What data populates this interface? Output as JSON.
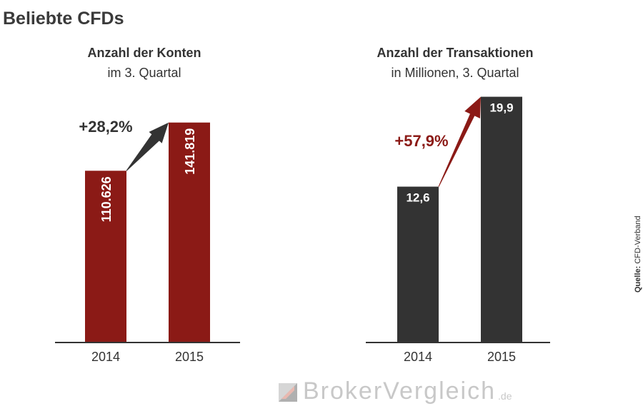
{
  "page_title": "Beliebte CFDs",
  "colors": {
    "dark_red": "#8b1a16",
    "dark_gray": "#333333",
    "arrow_gray": "#333333",
    "axis": "#333333",
    "logo_gray": "#c8c8c8"
  },
  "source": {
    "label": "Quelle:",
    "value": "CFD-Verband"
  },
  "logo": {
    "text": "BrokerVergleich",
    "suffix": ".de",
    "mark_icon": "brokervergleich-logo-icon"
  },
  "chart_data": [
    {
      "type": "bar",
      "title": "Anzahl der Konten",
      "subtitle": "im 3. Quartal",
      "categories": [
        "2014",
        "2015"
      ],
      "values": [
        110626,
        141819
      ],
      "value_labels": [
        "110.626",
        "141.819"
      ],
      "label_orientation": "vertical",
      "bar_color": "#8b1a16",
      "change_label": "+28,2%",
      "change_color": "#333333",
      "arrow_color": "#333333",
      "ylim": [
        0,
        180000
      ]
    },
    {
      "type": "bar",
      "title": "Anzahl der Transaktionen",
      "subtitle": "in Millionen, 3. Quartal",
      "categories": [
        "2014",
        "2015"
      ],
      "values": [
        12.6,
        19.9
      ],
      "value_labels": [
        "12,6",
        "19,9"
      ],
      "label_orientation": "horizontal",
      "bar_color": "#333333",
      "change_label": "+57,9%",
      "change_color": "#8b1a16",
      "arrow_color": "#8b1a16",
      "ylim": [
        0,
        22.6
      ]
    }
  ]
}
